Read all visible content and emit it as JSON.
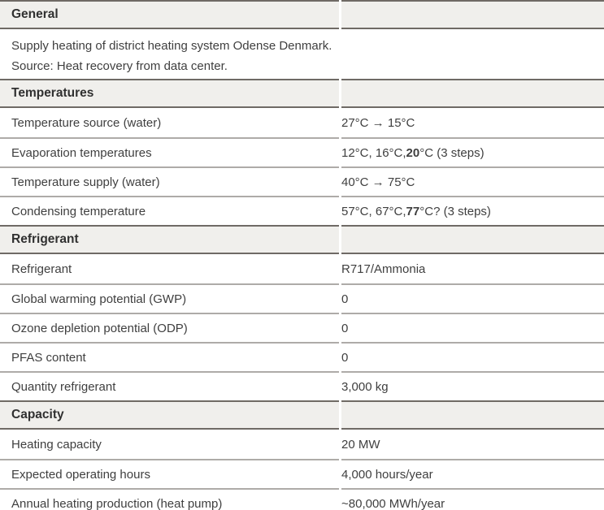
{
  "table": {
    "colors": {
      "header_bg": "#f0efec",
      "header_border": "#6f6a65",
      "row_divider": "#aeaba8",
      "header_text": "#303030",
      "body_text": "#3f3f3f"
    },
    "sections": [
      {
        "title": "General",
        "description": {
          "line1": "Supply heating of district heating system Odense Denmark.",
          "line2": "Source: Heat recovery from data center."
        },
        "rows": []
      },
      {
        "title": "Temperatures",
        "rows": [
          {
            "label": "Temperature source (water)",
            "value": {
              "pre": "27°C → 15°C",
              "bold": "",
              "post": ""
            }
          },
          {
            "label": "Evaporation temperatures",
            "value": {
              "pre": "12°C, 16°C, ",
              "bold": "20",
              "post": "°C (3 steps)"
            }
          },
          {
            "label": "Temperature supply (water)",
            "value": {
              "pre": "40°C → 75°C",
              "bold": "",
              "post": ""
            }
          },
          {
            "label": "Condensing temperature",
            "value": {
              "pre": "57°C, 67°C, ",
              "bold": "77",
              "post": "°C? (3 steps)"
            }
          }
        ]
      },
      {
        "title": "Refrigerant",
        "rows": [
          {
            "label": "Refrigerant",
            "value": {
              "pre": "R717/Ammonia",
              "bold": "",
              "post": ""
            }
          },
          {
            "label": "Global warming potential (GWP)",
            "value": {
              "pre": "0",
              "bold": "",
              "post": ""
            }
          },
          {
            "label": "Ozone depletion potential (ODP)",
            "value": {
              "pre": "0",
              "bold": "",
              "post": ""
            }
          },
          {
            "label": "PFAS content",
            "value": {
              "pre": "0",
              "bold": "",
              "post": ""
            }
          },
          {
            "label": "Quantity refrigerant",
            "value": {
              "pre": "3,000 kg",
              "bold": "",
              "post": ""
            }
          }
        ]
      },
      {
        "title": "Capacity",
        "rows": [
          {
            "label": "Heating capacity",
            "value": {
              "pre": "20 MW",
              "bold": "",
              "post": ""
            }
          },
          {
            "label": "Expected operating hours",
            "value": {
              "pre": "4,000 hours/year",
              "bold": "",
              "post": ""
            }
          },
          {
            "label": "Annual heating production (heat pump)",
            "value": {
              "pre": "~80,000 MWh/year",
              "bold": "",
              "post": ""
            }
          }
        ]
      }
    ]
  }
}
